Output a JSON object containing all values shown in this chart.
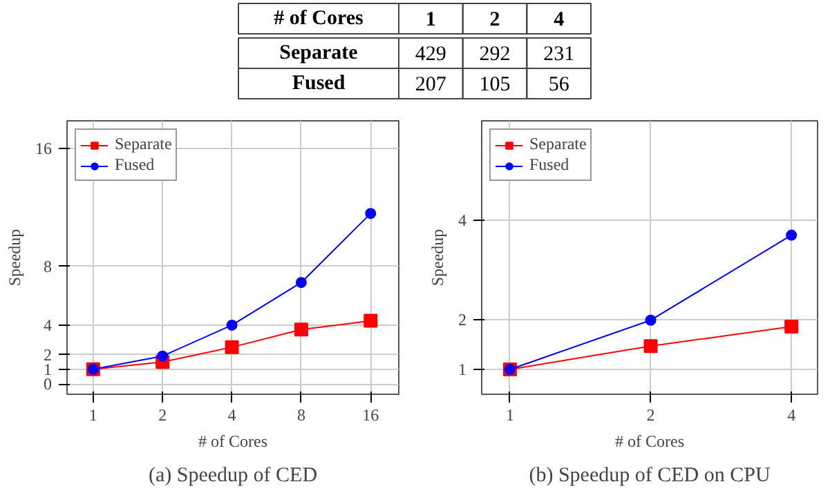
{
  "chart_data": [
    {
      "type": "other",
      "xlabel": "# of Cores",
      "categories": [
        "1",
        "2",
        "4"
      ],
      "series": [
        {
          "name": "Separate",
          "values": [
            429,
            292,
            231
          ]
        },
        {
          "name": "Fused",
          "values": [
            207,
            105,
            56
          ]
        }
      ],
      "data_labels": true
    },
    {
      "type": "line",
      "title": "(a) Speedup of CED",
      "xlabel": "# of Cores",
      "ylabel": "Speedup",
      "log": "x",
      "x": [
        1,
        2,
        4,
        8,
        16
      ],
      "xlim": [
        0.77,
        21.2
      ],
      "xticks": [
        1,
        2,
        4,
        8,
        16
      ],
      "ylim": [
        -0.7,
        17.9
      ],
      "yticks": [
        0,
        1,
        2,
        4,
        8,
        16
      ],
      "grid": true,
      "legend": "top left",
      "series": [
        {
          "name": "Separate",
          "color": "#ff0000",
          "marker": "square",
          "values": [
            1,
            1.5,
            2.5,
            3.7,
            4.3
          ]
        },
        {
          "name": "Fused",
          "color": "#0000ff",
          "marker": "circle",
          "values": [
            1,
            1.9,
            4.0,
            6.9,
            11.6
          ]
        }
      ]
    },
    {
      "type": "line",
      "title": "(b) Speedup of CED on CPU",
      "xlabel": "# of Cores",
      "ylabel": "Speedup",
      "log": "x",
      "x": [
        1,
        2,
        4
      ],
      "xlim": [
        0.87,
        4.55
      ],
      "xticks": [
        1,
        2,
        4
      ],
      "ylim": [
        0.5,
        6.0
      ],
      "yticks": [
        1,
        2,
        4
      ],
      "grid": true,
      "legend": "top left",
      "series": [
        {
          "name": "Separate",
          "color": "#ff0000",
          "marker": "square",
          "values": [
            1,
            1.47,
            1.86
          ]
        },
        {
          "name": "Fused",
          "color": "#0000ff",
          "marker": "circle",
          "values": [
            1,
            1.99,
            3.7
          ]
        }
      ]
    }
  ]
}
